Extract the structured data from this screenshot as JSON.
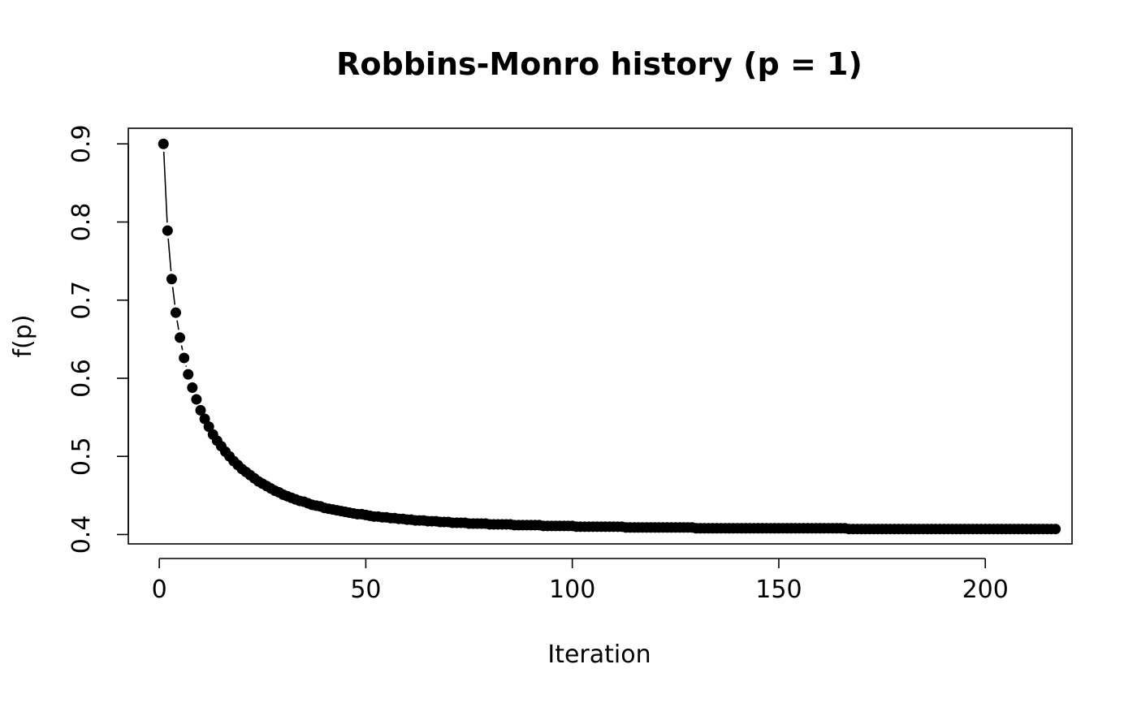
{
  "chart_data": {
    "type": "scatter",
    "plot_type": "b",
    "title": "Robbins-Monro history (p = 1)",
    "xlabel": "Iteration",
    "ylabel": "f(p)",
    "xlim": [
      -7.5,
      221
    ],
    "ylim": [
      0.388,
      0.92
    ],
    "xticks": [
      0,
      50,
      100,
      150,
      200
    ],
    "yticks": [
      0.4,
      0.5,
      0.6,
      0.7,
      0.8,
      0.9
    ],
    "xtick_labels": [
      "0",
      "50",
      "100",
      "150",
      "200"
    ],
    "ytick_labels": [
      "0.4",
      "0.5",
      "0.6",
      "0.7",
      "0.8",
      "0.9"
    ],
    "grid": false,
    "legend": false,
    "marker_color": "#000000",
    "series": [
      {
        "x_start": 1,
        "x_end": 213,
        "y": [
          0.9,
          0.789,
          0.727,
          0.684,
          0.652,
          0.626,
          0.605,
          0.588,
          0.573,
          0.559,
          0.548,
          0.538,
          0.528,
          0.52,
          0.513,
          0.506,
          0.5,
          0.494,
          0.489,
          0.484,
          0.48,
          0.476,
          0.472,
          0.468,
          0.465,
          0.462,
          0.459,
          0.456,
          0.454,
          0.451,
          0.449,
          0.447,
          0.445,
          0.443,
          0.442,
          0.44,
          0.438,
          0.437,
          0.436,
          0.434,
          0.433,
          0.432,
          0.431,
          0.43,
          0.429,
          0.428,
          0.427,
          0.426,
          0.426,
          0.425,
          0.424,
          0.423,
          0.423,
          0.422,
          0.422,
          0.421,
          0.421,
          0.42,
          0.42,
          0.419,
          0.419,
          0.418,
          0.418,
          0.418,
          0.417,
          0.417,
          0.417,
          0.416,
          0.416,
          0.416,
          0.415,
          0.415,
          0.415,
          0.415,
          0.414,
          0.414,
          0.414,
          0.414,
          0.414,
          0.413,
          0.413,
          0.413,
          0.413,
          0.413,
          0.413,
          0.412,
          0.412,
          0.412,
          0.412,
          0.412,
          0.412,
          0.412,
          0.411,
          0.411,
          0.411,
          0.411,
          0.411,
          0.411,
          0.411,
          0.411,
          0.41,
          0.41,
          0.41,
          0.41,
          0.41,
          0.41,
          0.41,
          0.41,
          0.41,
          0.41,
          0.41,
          0.41,
          0.409,
          0.409,
          0.409,
          0.409,
          0.409,
          0.409,
          0.409,
          0.409,
          0.409,
          0.409,
          0.409,
          0.409,
          0.409,
          0.409,
          0.409,
          0.409,
          0.409,
          0.408,
          0.408,
          0.408,
          0.408,
          0.408,
          0.408,
          0.408,
          0.408,
          0.408,
          0.408,
          0.408,
          0.408,
          0.408,
          0.408,
          0.408,
          0.408,
          0.408,
          0.408,
          0.408,
          0.408,
          0.408,
          0.408,
          0.408,
          0.408,
          0.408,
          0.408,
          0.408,
          0.408,
          0.408,
          0.408,
          0.408,
          0.408,
          0.408,
          0.408,
          0.408,
          0.408,
          0.408,
          0.407,
          0.407,
          0.407,
          0.407,
          0.407,
          0.407,
          0.407,
          0.407,
          0.407,
          0.407,
          0.407,
          0.407,
          0.407,
          0.407,
          0.407,
          0.407,
          0.407,
          0.407,
          0.407,
          0.407,
          0.407,
          0.407,
          0.407,
          0.407,
          0.407,
          0.407,
          0.407,
          0.407,
          0.407,
          0.407,
          0.407,
          0.407,
          0.407,
          0.407,
          0.407,
          0.407,
          0.407,
          0.407,
          0.407,
          0.407,
          0.407,
          0.407,
          0.407,
          0.407,
          0.407,
          0.407,
          0.407,
          0.407,
          0.407,
          0.407,
          0.407
        ]
      }
    ]
  }
}
